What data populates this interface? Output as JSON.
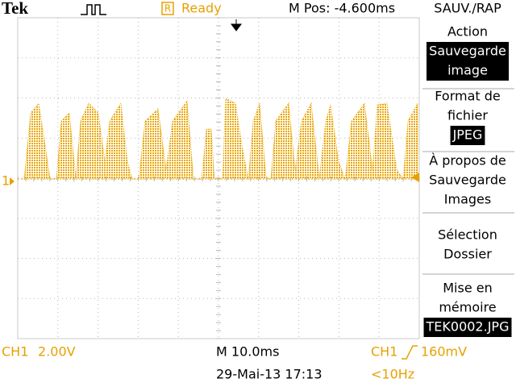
{
  "header": {
    "brand": "Tek",
    "status_icon": "R",
    "status": "Ready",
    "position": "M Pos: -4.600ms",
    "menu_title": "SAUV./RAP"
  },
  "channel_marker": "1",
  "menu": [
    {
      "label": [
        "Action"
      ],
      "value": [
        "Sauvegarde",
        "image"
      ]
    },
    {
      "label": [
        "Format de",
        "fichier"
      ],
      "value": [
        "JPEG"
      ]
    },
    {
      "label": [
        "À propos de",
        "Sauvegarde",
        "Images"
      ]
    },
    {
      "label": [
        "Sélection",
        "Dossier"
      ]
    },
    {
      "label": [
        "Mise en",
        "mémoire"
      ],
      "value": [
        "TEK0002.JPG"
      ]
    }
  ],
  "footer": {
    "channel": "CH1",
    "channel_scale": "2.00V",
    "timebase": "M 10.0ms",
    "trigger_source": "CH1",
    "trigger_level": "160mV",
    "datetime": "29-Mai-13 17:13",
    "frequency": "<10Hz"
  }
}
